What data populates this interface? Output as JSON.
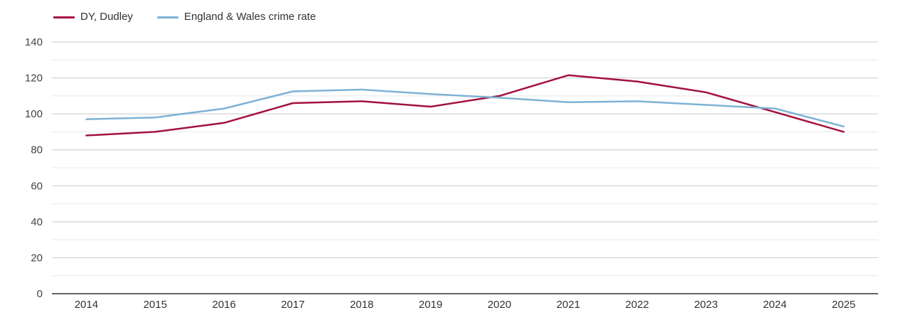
{
  "chart_data": {
    "type": "line",
    "categories": [
      "2014",
      "2015",
      "2016",
      "2017",
      "2018",
      "2019",
      "2020",
      "2021",
      "2022",
      "2023",
      "2024",
      "2025"
    ],
    "series": [
      {
        "name": "DY, Dudley",
        "color": "#a3123c",
        "values": [
          88,
          90,
          95,
          106,
          107,
          104,
          110,
          121.5,
          118,
          112,
          101,
          90
        ]
      },
      {
        "name": "England & Wales crime rate",
        "color": "#7eb2d6",
        "values": [
          97,
          98,
          103,
          112.5,
          113.5,
          111,
          109,
          106.5,
          107,
          105,
          103,
          93
        ]
      }
    ],
    "title": "",
    "xlabel": "",
    "ylabel": "",
    "ylim": [
      0,
      140
    ],
    "y_major_ticks": [
      0,
      20,
      40,
      60,
      80,
      100,
      120,
      140
    ],
    "y_minor_step": 10,
    "grid": true,
    "legend_position": "top-left"
  },
  "colors": {
    "axis_line": "#333333",
    "major_grid": "#c9c9c9",
    "minor_grid": "#e8e8e8",
    "y_tick_label": "#444444",
    "x_tick_label": "#333333"
  }
}
